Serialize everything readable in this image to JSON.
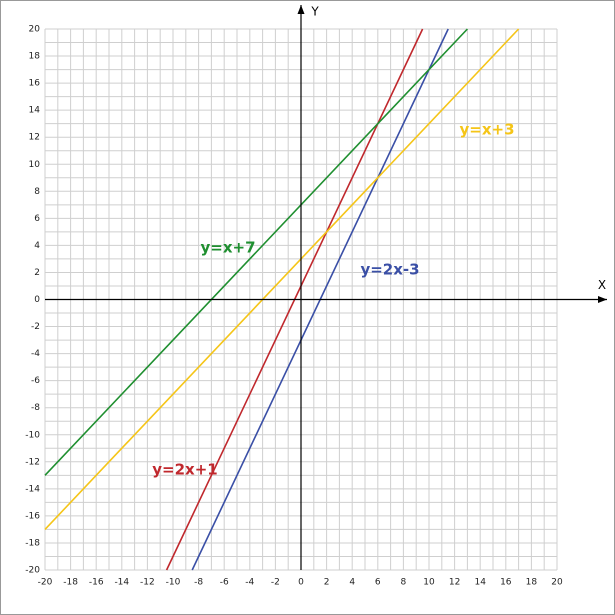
{
  "chart_data": {
    "type": "line",
    "x_label": "X",
    "y_label": "Y",
    "xlim": [
      -20,
      20
    ],
    "ylim": [
      -20,
      20
    ],
    "xticks": [
      -20,
      -18,
      -16,
      -14,
      -12,
      -10,
      -8,
      -6,
      -4,
      -2,
      0,
      2,
      4,
      6,
      8,
      10,
      12,
      14,
      16,
      18,
      20
    ],
    "yticks": [
      -20,
      -18,
      -16,
      -14,
      -12,
      -10,
      -8,
      -6,
      -4,
      -2,
      0,
      2,
      4,
      6,
      8,
      10,
      12,
      14,
      16,
      18,
      20
    ],
    "grid": true,
    "series": [
      {
        "name": "y=2x+1",
        "color": "#c0282d",
        "x": [
          -10.5,
          9.5
        ],
        "values": [
          -20,
          20
        ]
      },
      {
        "name": "y=2x-3",
        "color": "#3a4fa6",
        "x": [
          -8.5,
          11.5
        ],
        "values": [
          -20,
          20
        ]
      },
      {
        "name": "y=x+7",
        "color": "#1f8f30",
        "x": [
          -20,
          13
        ],
        "values": [
          -13,
          20
        ]
      },
      {
        "name": "y=x+3",
        "color": "#f5c518",
        "x": [
          -20,
          17
        ],
        "values": [
          -17,
          20
        ]
      }
    ]
  }
}
